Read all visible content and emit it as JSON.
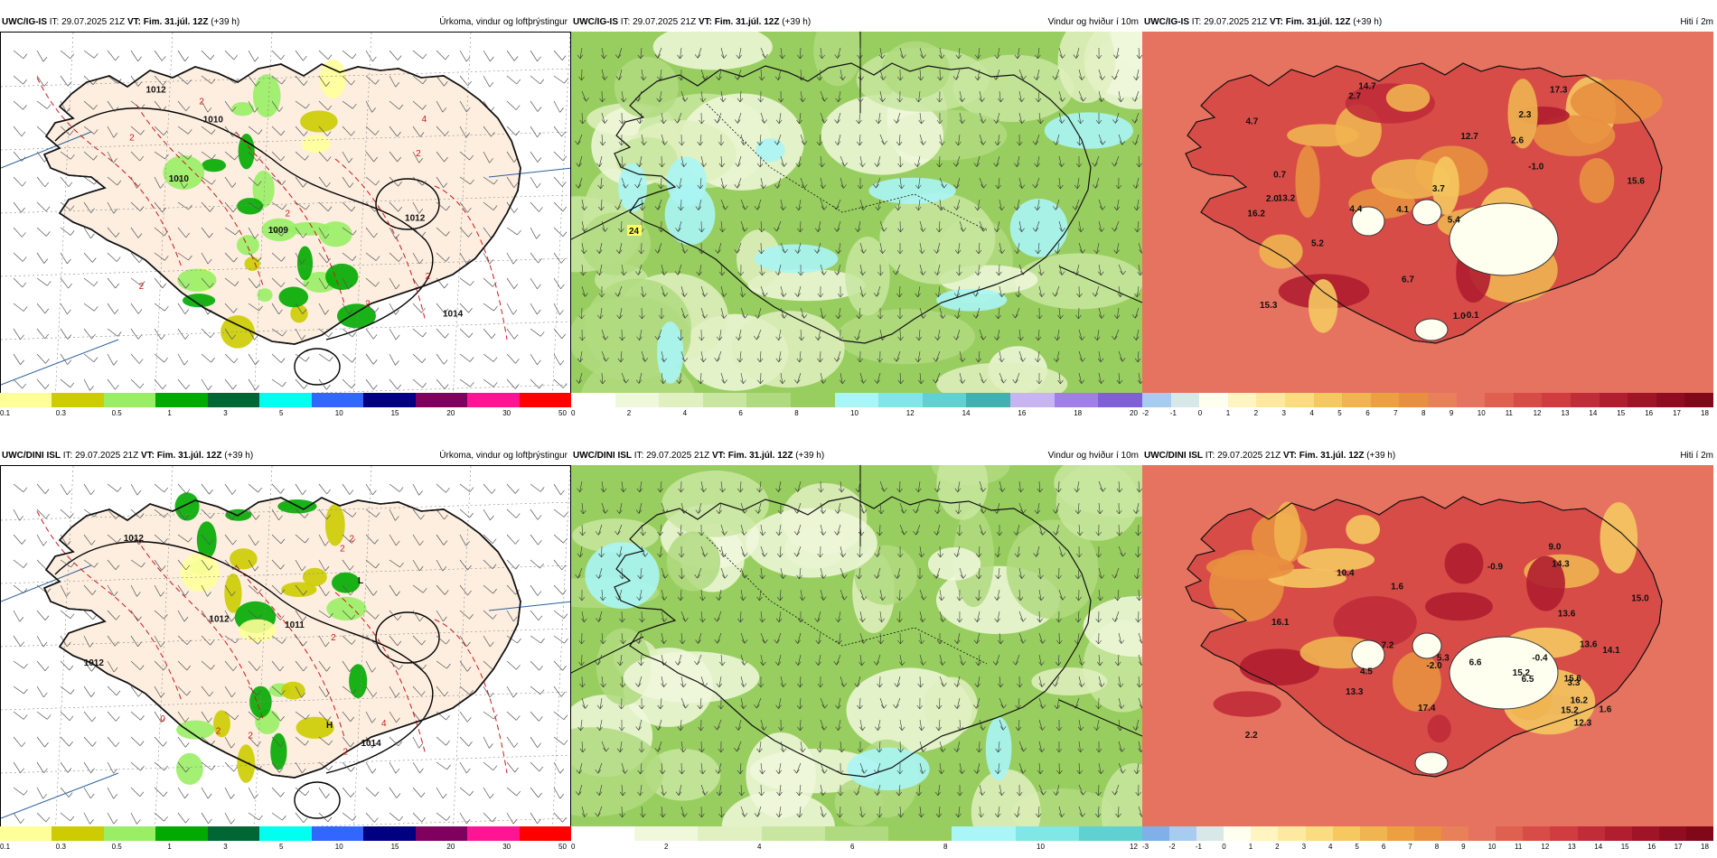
{
  "rows": [
    {
      "model": "UWC/IG-IS",
      "it": "IT: 29.07.2025 21Z",
      "vt": "VT: Fim. 31.júl. 12Z",
      "lead": "(+39 h)",
      "panels": [
        {
          "type": "precip",
          "title": "Úrkoma, vindur og loftþrýstingur",
          "pressure_labels": [
            "1009",
            "1010",
            "1012",
            "1012",
            "1014",
            "1010"
          ],
          "red_labels": [
            "2",
            "2",
            "2",
            "2",
            "4",
            "2",
            "2",
            "2"
          ],
          "colorbar_colors": [
            "#ffff99",
            "#cccc00",
            "#99ee66",
            "#00aa00",
            "#006633",
            "#00ffee",
            "#3366ff",
            "#000080",
            "#800060",
            "#ff1493",
            "#ff0000"
          ],
          "colorbar_ticks": [
            "0.1",
            "0.3",
            "0.5",
            "1",
            "3",
            "5",
            "10",
            "15",
            "20",
            "30",
            "50"
          ]
        },
        {
          "type": "wind",
          "title": "Vindur og hviður í 10m",
          "value_labels": [
            "24"
          ],
          "colorbar_colors": [
            "#ffffff",
            "#f0f8dc",
            "#e0f0c0",
            "#c8e6a0",
            "#b0da80",
            "#98ce60",
            "#aaf5f5",
            "#80e6e6",
            "#60d0d0",
            "#40b0b0",
            "#c8b4f0",
            "#a080e8",
            "#8060d8"
          ],
          "colorbar_ticks": [
            "0",
            "2",
            "4",
            "6",
            "8",
            "10",
            "12",
            "14",
            "16",
            "18",
            "20"
          ]
        },
        {
          "type": "temp",
          "title": "Hiti í 2m",
          "temp_labels": [
            "14.7",
            "2.3",
            "15.6",
            "4.1",
            "5.4",
            "13.2",
            "4.7",
            "2.6",
            "16.2",
            "12.7",
            "3.7",
            "15.3",
            "2.7",
            "4.4",
            "1.0",
            "-0.1",
            "6.7",
            "17.3",
            "-1.0",
            "5.2",
            "0.7",
            "2.0"
          ],
          "colorbar_colors": [
            "#a6cdf0",
            "#d8e8e8",
            "#fffff0",
            "#fff5c0",
            "#ffe9a0",
            "#fbdc80",
            "#f5c860",
            "#f0b450",
            "#eca040",
            "#e89040",
            "#e8805a",
            "#e57360",
            "#e06050",
            "#d84c48",
            "#d03c40",
            "#c02c38",
            "#b01e30",
            "#a01428",
            "#900c20",
            "#800818"
          ],
          "colorbar_ticks": [
            "-2",
            "-1",
            "0",
            "1",
            "2",
            "3",
            "4",
            "5",
            "6",
            "7",
            "8",
            "9",
            "10",
            "11",
            "12",
            "13",
            "14",
            "15",
            "16",
            "17",
            "18"
          ]
        }
      ]
    },
    {
      "model": "UWC/DINI ISL",
      "it": "IT: 29.07.2025 21Z",
      "vt": "VT: Fim. 31.júl. 12Z",
      "lead": "(+39 h)",
      "panels": [
        {
          "type": "precip",
          "title": "Úrkoma, vindur og loftþrýstingur",
          "pressure_labels": [
            "1011",
            "1012",
            "1012",
            "1012",
            "1014"
          ],
          "low_label": "L",
          "high_label": "H",
          "red_labels": [
            "2",
            "2",
            "2",
            "2",
            "2",
            "4",
            "2",
            "0"
          ],
          "colorbar_colors": [
            "#ffff99",
            "#cccc00",
            "#99ee66",
            "#00aa00",
            "#006633",
            "#00ffee",
            "#3366ff",
            "#000080",
            "#800060",
            "#ff1493",
            "#ff0000"
          ],
          "colorbar_ticks": [
            "0.1",
            "0.3",
            "0.5",
            "1",
            "3",
            "5",
            "10",
            "15",
            "20",
            "30",
            "50"
          ]
        },
        {
          "type": "wind",
          "title": "Vindur og hviður í 10m",
          "value_labels": [],
          "colorbar_colors": [
            "#ffffff",
            "#f0f8dc",
            "#e0f0c0",
            "#c8e6a0",
            "#b0da80",
            "#98ce60",
            "#aaf5f5",
            "#80e6e6",
            "#60d0d0"
          ],
          "colorbar_ticks": [
            "0",
            "2",
            "4",
            "6",
            "8",
            "10",
            "12"
          ]
        },
        {
          "type": "temp",
          "title": "Hiti í 2m",
          "temp_labels": [
            "12.3",
            "2.2",
            "10.4",
            "13.3",
            "15.0",
            "6.5",
            "5.3",
            "14.3",
            "15.6",
            "16.2",
            "15.2",
            "14.1",
            "6.6",
            "7.2",
            "4.5",
            "16.1",
            "3.3",
            "1.6",
            "-0.4",
            "-2.0",
            "17.4",
            "13.6",
            "15.2",
            "13.6",
            "-0.9",
            "9.0",
            "1.6"
          ],
          "colorbar_colors": [
            "#7fb0e8",
            "#a6cdf0",
            "#d8e8e8",
            "#fffff0",
            "#fff5c0",
            "#ffe9a0",
            "#fbdc80",
            "#f5c860",
            "#f0b450",
            "#eca040",
            "#e89040",
            "#e8805a",
            "#e57360",
            "#e06050",
            "#d84c48",
            "#d03c40",
            "#c02c38",
            "#b01e30",
            "#a01428",
            "#900c20",
            "#800818"
          ],
          "colorbar_ticks": [
            "-3",
            "-2",
            "-1",
            "0",
            "1",
            "2",
            "3",
            "4",
            "5",
            "6",
            "7",
            "8",
            "9",
            "10",
            "11",
            "12",
            "13",
            "14",
            "15",
            "16",
            "17",
            "18"
          ]
        }
      ]
    }
  ]
}
